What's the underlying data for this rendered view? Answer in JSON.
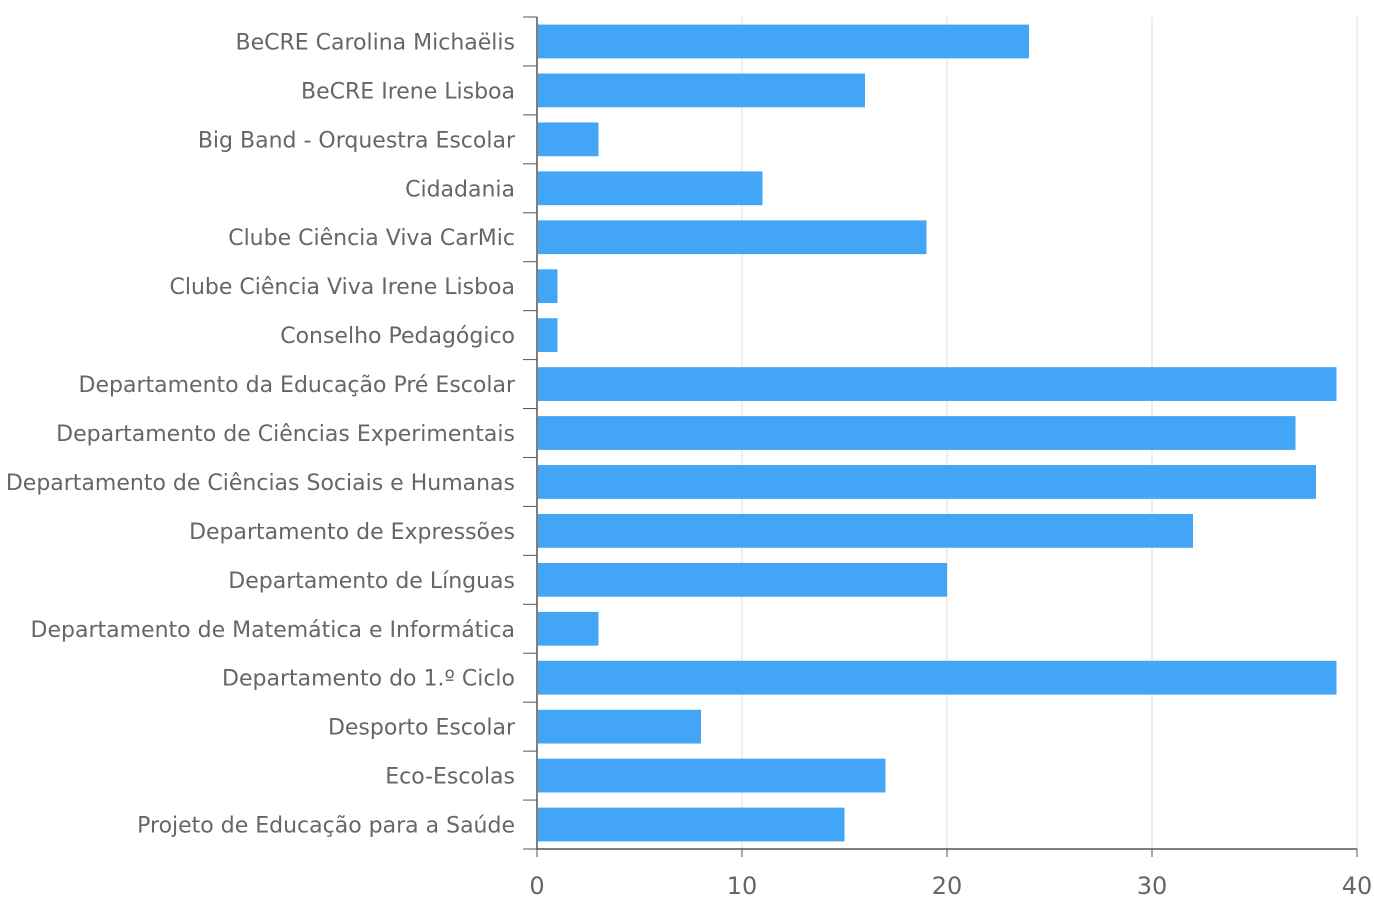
{
  "chart_data": {
    "type": "bar",
    "orientation": "horizontal",
    "categories": [
      "BeCRE Carolina Michaëlis",
      "BeCRE Irene Lisboa",
      "Big Band - Orquestra Escolar",
      "Cidadania",
      "Clube Ciência Viva CarMic",
      "Clube Ciência Viva Irene Lisboa",
      "Conselho Pedagógico",
      "Departamento da Educação Pré Escolar",
      "Departamento de Ciências Experimentais",
      "Departamento de Ciências Sociais e Humanas",
      "Departamento de Expressões",
      "Departamento de Línguas",
      "Departamento de Matemática e Informática",
      "Departamento do 1.º Ciclo",
      "Desporto Escolar",
      "Eco-Escolas",
      "Projeto de Educação para a Saúde"
    ],
    "values": [
      24,
      16,
      3,
      11,
      19,
      1,
      1,
      39,
      37,
      38,
      32,
      20,
      3,
      39,
      8,
      17,
      15
    ],
    "xlim": [
      0,
      40
    ],
    "xticks": [
      "0",
      "10",
      "20",
      "30",
      "40"
    ],
    "grid": true,
    "bar_color": "#42a5f5",
    "grid_color": "#dddddd",
    "axis_color": "#555555",
    "text_color": "#666666"
  }
}
